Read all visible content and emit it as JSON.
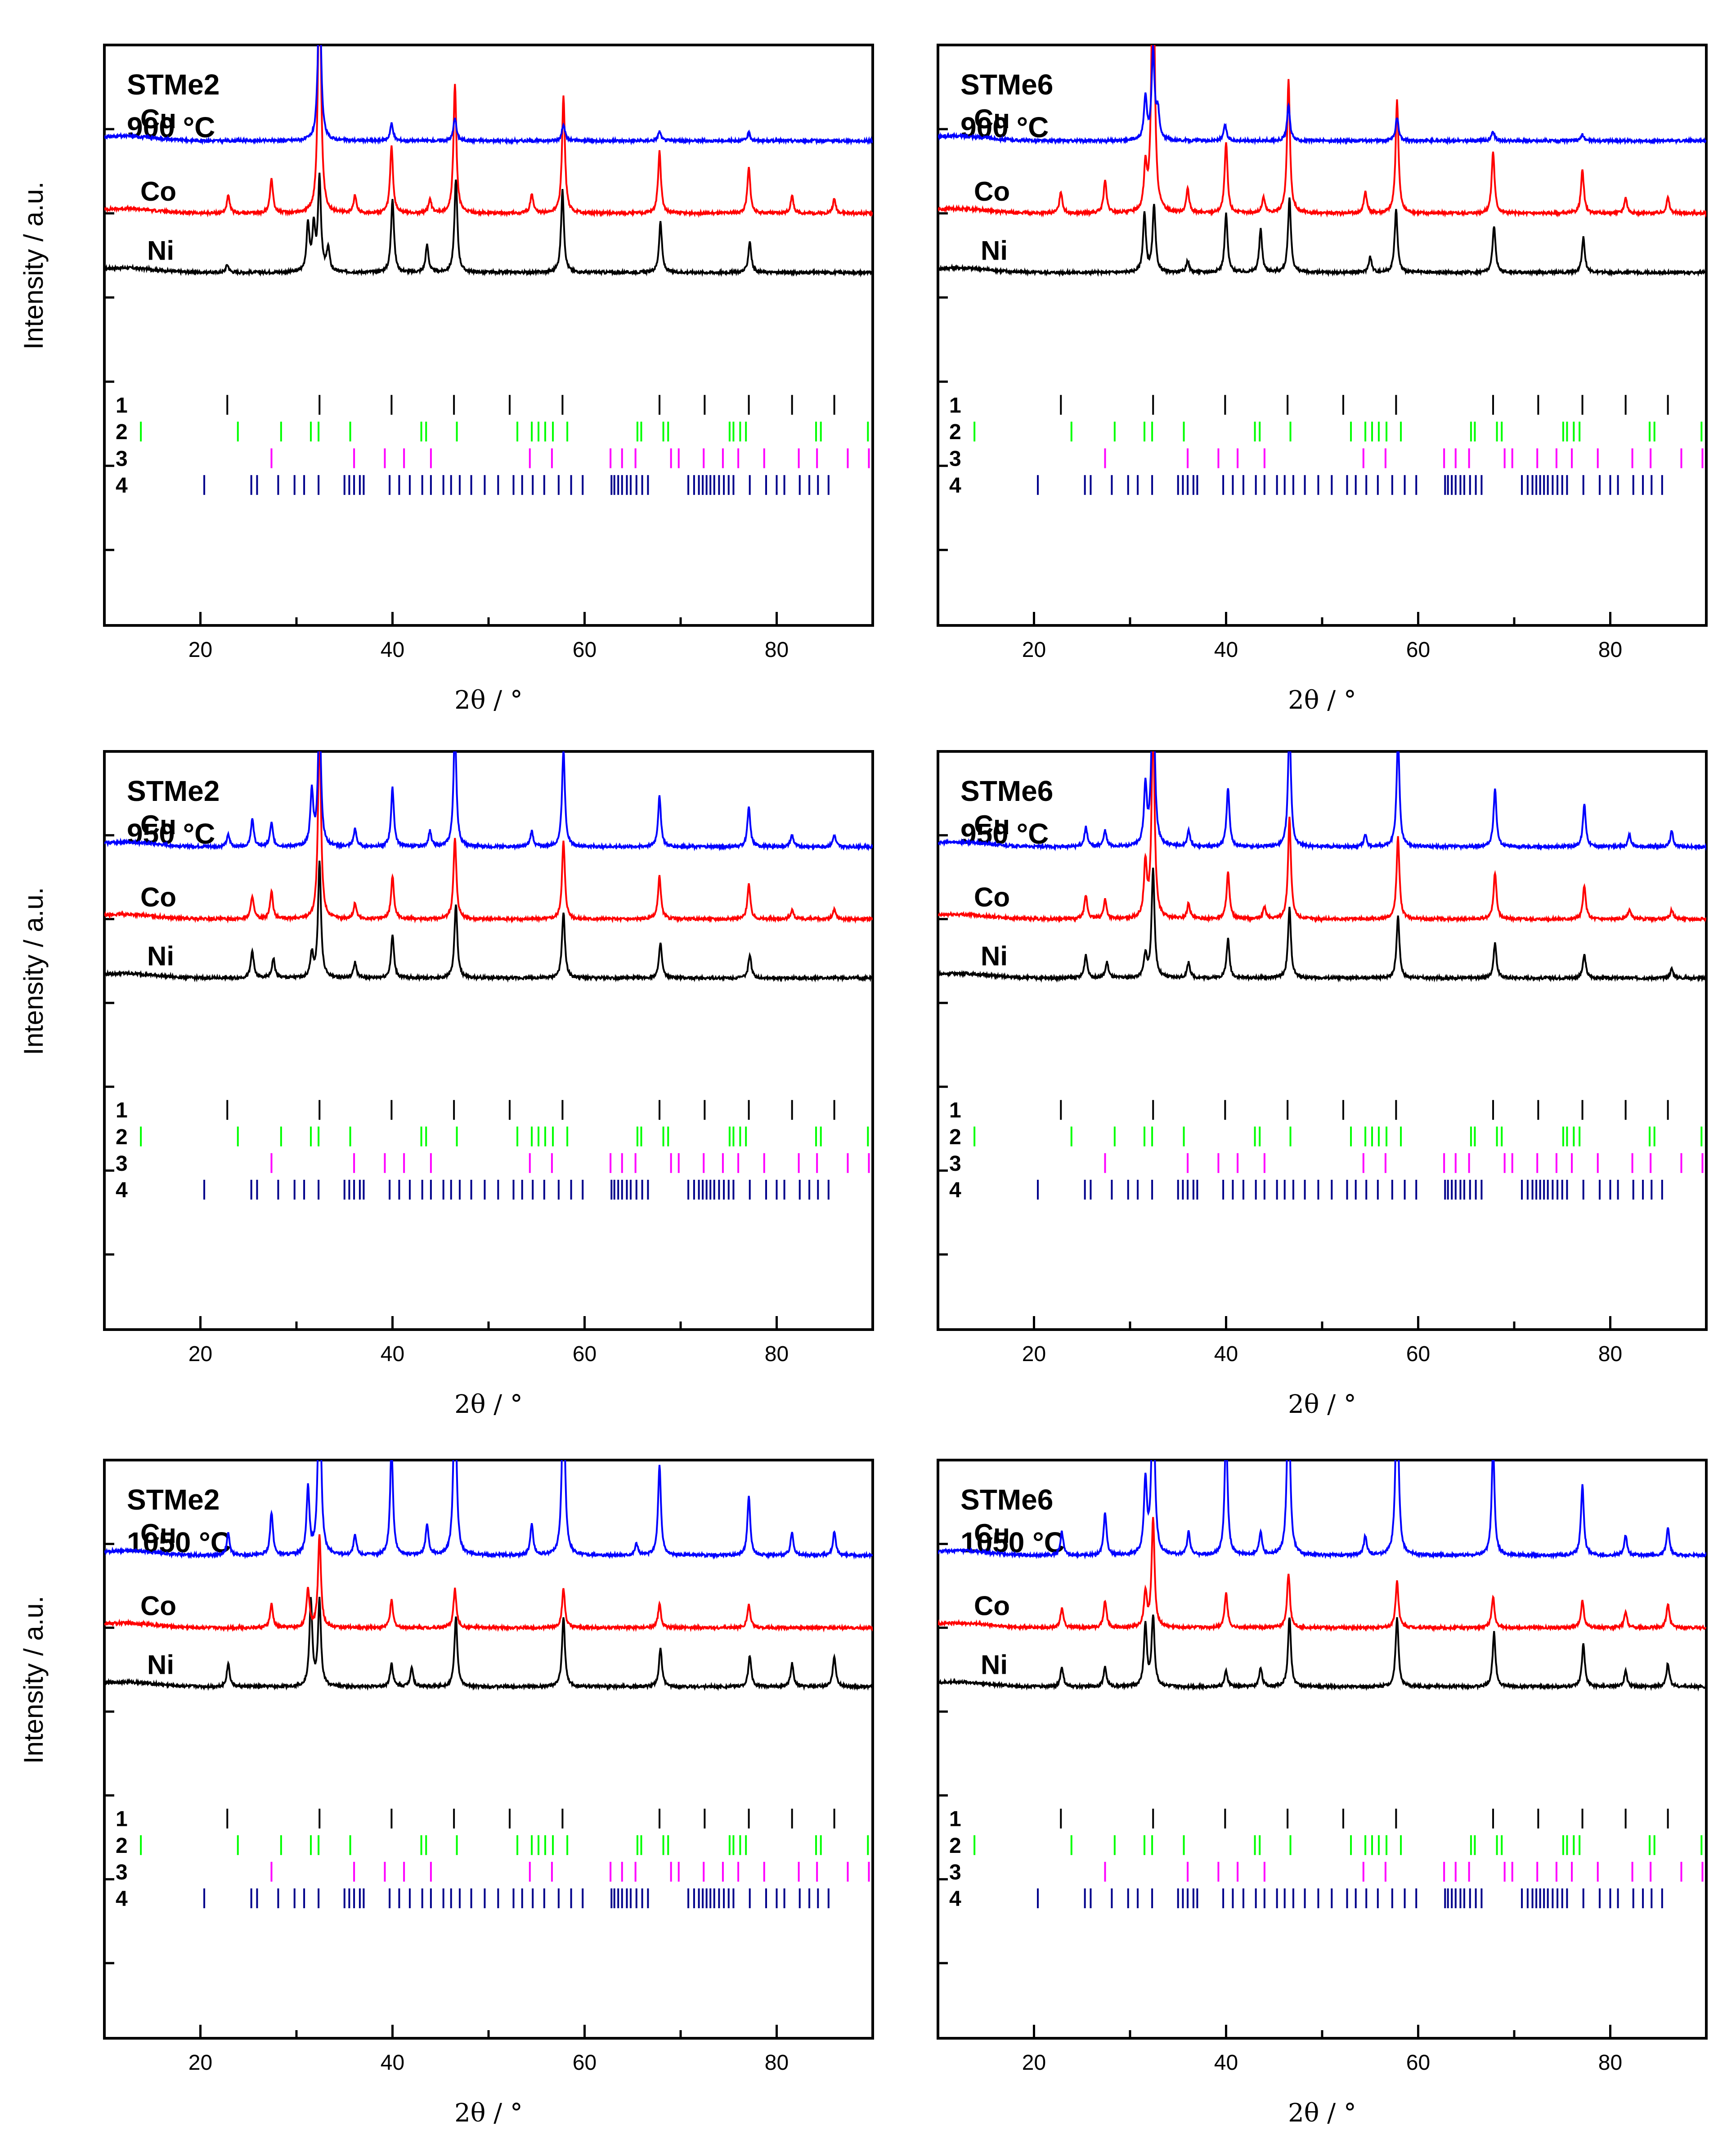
{
  "chart_data": {
    "type": "line",
    "figure_kind": "stacked XRD patterns with reflection markers",
    "xlabel": "2θ / °",
    "ylabel": "Intensity / a.u.",
    "xlim": [
      10,
      90
    ],
    "xticks": [
      20,
      40,
      60,
      80
    ],
    "series_labels": [
      "Cu",
      "Co",
      "Ni"
    ],
    "series_colors": {
      "Cu": "#0000ff",
      "Co": "#ff0000",
      "Ni": "#000000"
    },
    "reference_labels": [
      "1",
      "2",
      "3",
      "4"
    ],
    "reference_colors": {
      "1": "#000000",
      "2": "#00ff00",
      "3": "#ff00ff",
      "4": "#00008b"
    },
    "reference_positions": {
      "1": [
        22.8,
        32.4,
        39.9,
        46.4,
        52.2,
        57.7,
        67.8,
        72.5,
        77.1,
        81.6,
        86.0
      ],
      "2": [
        13.8,
        23.9,
        28.4,
        31.5,
        32.3,
        35.6,
        43.0,
        43.5,
        46.7,
        53.0,
        54.5,
        55.2,
        55.9,
        56.7,
        58.2,
        65.5,
        65.9,
        68.2,
        68.7,
        75.1,
        75.5,
        76.2,
        76.8,
        84.1,
        84.6,
        89.5
      ],
      "3": [
        27.4,
        36.0,
        39.2,
        41.2,
        44.0,
        54.3,
        56.6,
        62.7,
        63.9,
        65.3,
        69.0,
        69.8,
        72.4,
        74.4,
        76.0,
        78.7,
        82.3,
        84.2,
        87.4,
        89.6
      ],
      "4": [
        20.4,
        25.3,
        25.9,
        28.1,
        29.8,
        30.8,
        32.3,
        35.0,
        35.5,
        36.0,
        36.6,
        37.0,
        39.7,
        40.7,
        41.8,
        43.1,
        44.0,
        45.3,
        46.1,
        47.0,
        48.2,
        49.6,
        51.0,
        52.6,
        53.5,
        54.6,
        55.8,
        57.3,
        58.6,
        59.8,
        62.8,
        63.1,
        63.5,
        63.9,
        64.4,
        64.8,
        65.4,
        66.0,
        66.6,
        70.8,
        71.4,
        71.9,
        72.3,
        72.7,
        73.1,
        73.5,
        74.0,
        74.5,
        75.0,
        75.5,
        77.2,
        78.9,
        80.0,
        80.8,
        82.4,
        83.4,
        84.3,
        85.4
      ]
    },
    "panels": [
      {
        "sample": "STMe2",
        "temperature": "900 °C",
        "peaks": {
          "Cu": [
            [
              32.4,
              2.2
            ],
            [
              39.9,
              0.22
            ],
            [
              46.5,
              0.3
            ],
            [
              57.8,
              0.22
            ],
            [
              67.8,
              0.12
            ],
            [
              77.1,
              0.1
            ]
          ],
          "Co": [
            [
              22.9,
              0.22
            ],
            [
              27.4,
              0.45
            ],
            [
              32.4,
              3.4
            ],
            [
              36.1,
              0.22
            ],
            [
              39.9,
              0.86
            ],
            [
              43.9,
              0.18
            ],
            [
              46.5,
              1.65
            ],
            [
              54.5,
              0.25
            ],
            [
              57.8,
              1.5
            ],
            [
              67.8,
              0.79
            ],
            [
              77.1,
              0.58
            ],
            [
              81.6,
              0.22
            ],
            [
              86.0,
              0.18
            ]
          ],
          "Ni": [
            [
              22.8,
              0.1
            ],
            [
              31.2,
              0.6
            ],
            [
              31.8,
              0.55
            ],
            [
              32.4,
              1.2
            ],
            [
              33.3,
              0.3
            ],
            [
              40.0,
              0.95
            ],
            [
              43.6,
              0.35
            ],
            [
              46.6,
              1.2
            ],
            [
              57.7,
              1.05
            ],
            [
              67.9,
              0.65
            ],
            [
              77.2,
              0.4
            ]
          ]
        }
      },
      {
        "sample": "STMe6",
        "temperature": "900 °C",
        "peaks": {
          "Cu": [
            [
              31.6,
              0.55
            ],
            [
              32.4,
              1.15
            ],
            [
              32.9,
              0.35
            ],
            [
              39.9,
              0.2
            ],
            [
              46.5,
              0.45
            ],
            [
              57.8,
              0.3
            ],
            [
              67.8,
              0.12
            ],
            [
              77.1,
              0.08
            ]
          ],
          "Co": [
            [
              22.8,
              0.28
            ],
            [
              27.4,
              0.42
            ],
            [
              31.6,
              0.55
            ],
            [
              32.4,
              3.8
            ],
            [
              36.0,
              0.3
            ],
            [
              40.0,
              0.9
            ],
            [
              43.9,
              0.2
            ],
            [
              46.5,
              1.7
            ],
            [
              54.5,
              0.28
            ],
            [
              57.8,
              1.45
            ],
            [
              67.8,
              0.79
            ],
            [
              77.1,
              0.55
            ],
            [
              81.6,
              0.2
            ],
            [
              86.0,
              0.2
            ]
          ],
          "Ni": [
            [
              31.5,
              0.75
            ],
            [
              32.5,
              0.85
            ],
            [
              36.0,
              0.15
            ],
            [
              40.0,
              0.75
            ],
            [
              43.6,
              0.55
            ],
            [
              46.6,
              0.95
            ],
            [
              55.0,
              0.2
            ],
            [
              57.7,
              0.8
            ],
            [
              67.9,
              0.6
            ],
            [
              77.2,
              0.45
            ]
          ]
        }
      },
      {
        "sample": "STMe2",
        "temperature": "950 °C",
        "peaks": {
          "Cu": [
            [
              22.9,
              0.15
            ],
            [
              25.4,
              0.35
            ],
            [
              27.4,
              0.3
            ],
            [
              31.6,
              0.7
            ],
            [
              32.4,
              1.8
            ],
            [
              36.1,
              0.22
            ],
            [
              40.0,
              0.75
            ],
            [
              43.9,
              0.2
            ],
            [
              46.5,
              1.55
            ],
            [
              54.5,
              0.2
            ],
            [
              57.8,
              1.25
            ],
            [
              67.8,
              0.65
            ],
            [
              77.1,
              0.5
            ],
            [
              81.6,
              0.15
            ],
            [
              86.0,
              0.15
            ]
          ],
          "Co": [
            [
              25.4,
              0.3
            ],
            [
              27.4,
              0.35
            ],
            [
              32.4,
              2.5
            ],
            [
              36.1,
              0.2
            ],
            [
              40.0,
              0.55
            ],
            [
              46.5,
              1.05
            ],
            [
              57.8,
              1.0
            ],
            [
              67.8,
              0.55
            ],
            [
              77.1,
              0.45
            ],
            [
              81.6,
              0.12
            ],
            [
              86.0,
              0.12
            ]
          ],
          "Ni": [
            [
              25.4,
              0.35
            ],
            [
              27.6,
              0.25
            ],
            [
              31.6,
              0.3
            ],
            [
              32.4,
              1.5
            ],
            [
              36.1,
              0.2
            ],
            [
              40.0,
              0.55
            ],
            [
              46.6,
              0.95
            ],
            [
              57.8,
              0.85
            ],
            [
              67.9,
              0.45
            ],
            [
              77.2,
              0.3
            ]
          ]
        }
      },
      {
        "sample": "STMe6",
        "temperature": "950 °C",
        "peaks": {
          "Cu": [
            [
              25.4,
              0.25
            ],
            [
              27.4,
              0.2
            ],
            [
              31.6,
              0.75
            ],
            [
              32.4,
              2.5
            ],
            [
              36.1,
              0.2
            ],
            [
              40.2,
              0.75
            ],
            [
              46.6,
              1.6
            ],
            [
              54.5,
              0.15
            ],
            [
              57.9,
              1.4
            ],
            [
              68.0,
              0.75
            ],
            [
              77.3,
              0.55
            ],
            [
              82.0,
              0.15
            ],
            [
              86.4,
              0.2
            ]
          ],
          "Co": [
            [
              25.4,
              0.3
            ],
            [
              27.4,
              0.25
            ],
            [
              31.6,
              0.7
            ],
            [
              32.4,
              2.6
            ],
            [
              36.1,
              0.2
            ],
            [
              40.2,
              0.6
            ],
            [
              44.0,
              0.15
            ],
            [
              46.6,
              1.3
            ],
            [
              57.9,
              1.05
            ],
            [
              68.0,
              0.6
            ],
            [
              77.3,
              0.42
            ],
            [
              82.0,
              0.12
            ],
            [
              86.4,
              0.12
            ]
          ],
          "Ni": [
            [
              25.4,
              0.3
            ],
            [
              27.6,
              0.2
            ],
            [
              31.6,
              0.3
            ],
            [
              32.4,
              1.4
            ],
            [
              36.1,
              0.2
            ],
            [
              40.2,
              0.5
            ],
            [
              46.6,
              0.9
            ],
            [
              57.9,
              0.8
            ],
            [
              68.0,
              0.45
            ],
            [
              77.3,
              0.3
            ],
            [
              86.4,
              0.12
            ]
          ]
        }
      },
      {
        "sample": "STMe2",
        "temperature": "1050 °C",
        "peaks": {
          "Cu": [
            [
              22.9,
              0.28
            ],
            [
              27.4,
              0.55
            ],
            [
              31.2,
              0.85
            ],
            [
              32.4,
              2.6
            ],
            [
              36.1,
              0.25
            ],
            [
              39.9,
              1.4
            ],
            [
              43.6,
              0.4
            ],
            [
              46.5,
              2.4
            ],
            [
              54.5,
              0.4
            ],
            [
              57.8,
              2.4
            ],
            [
              65.4,
              0.15
            ],
            [
              67.8,
              1.15
            ],
            [
              77.1,
              0.75
            ],
            [
              81.6,
              0.3
            ],
            [
              86.0,
              0.3
            ]
          ],
          "Co": [
            [
              27.4,
              0.3
            ],
            [
              31.2,
              0.5
            ],
            [
              32.4,
              1.2
            ],
            [
              39.9,
              0.35
            ],
            [
              46.5,
              0.5
            ],
            [
              57.8,
              0.5
            ],
            [
              67.8,
              0.3
            ],
            [
              77.1,
              0.3
            ]
          ],
          "Ni": [
            [
              22.9,
              0.3
            ],
            [
              31.5,
              1.1
            ],
            [
              32.4,
              1.1
            ],
            [
              39.9,
              0.3
            ],
            [
              42.0,
              0.25
            ],
            [
              46.6,
              0.9
            ],
            [
              57.8,
              0.9
            ],
            [
              67.9,
              0.5
            ],
            [
              77.2,
              0.4
            ],
            [
              81.6,
              0.3
            ],
            [
              86.0,
              0.4
            ]
          ]
        }
      },
      {
        "sample": "STMe6",
        "temperature": "1050 °C",
        "peaks": {
          "Cu": [
            [
              22.9,
              0.3
            ],
            [
              27.4,
              0.55
            ],
            [
              31.6,
              0.95
            ],
            [
              32.4,
              2.5
            ],
            [
              36.1,
              0.3
            ],
            [
              40.0,
              1.65
            ],
            [
              43.6,
              0.3
            ],
            [
              46.5,
              2.4
            ],
            [
              54.5,
              0.25
            ],
            [
              57.8,
              2.4
            ],
            [
              67.8,
              1.4
            ],
            [
              77.1,
              0.9
            ],
            [
              81.6,
              0.25
            ],
            [
              86.0,
              0.35
            ]
          ],
          "Co": [
            [
              22.9,
              0.25
            ],
            [
              27.4,
              0.35
            ],
            [
              31.6,
              0.45
            ],
            [
              32.4,
              1.4
            ],
            [
              40.0,
              0.45
            ],
            [
              46.5,
              0.7
            ],
            [
              57.8,
              0.6
            ],
            [
              67.8,
              0.4
            ],
            [
              77.1,
              0.35
            ],
            [
              81.6,
              0.2
            ],
            [
              86.0,
              0.3
            ]
          ],
          "Ni": [
            [
              22.9,
              0.25
            ],
            [
              27.4,
              0.25
            ],
            [
              31.6,
              0.8
            ],
            [
              32.4,
              0.9
            ],
            [
              40.0,
              0.2
            ],
            [
              43.6,
              0.25
            ],
            [
              46.6,
              0.9
            ],
            [
              57.8,
              0.9
            ],
            [
              67.9,
              0.7
            ],
            [
              77.2,
              0.55
            ],
            [
              81.6,
              0.2
            ],
            [
              86.0,
              0.3
            ]
          ]
        }
      }
    ]
  }
}
